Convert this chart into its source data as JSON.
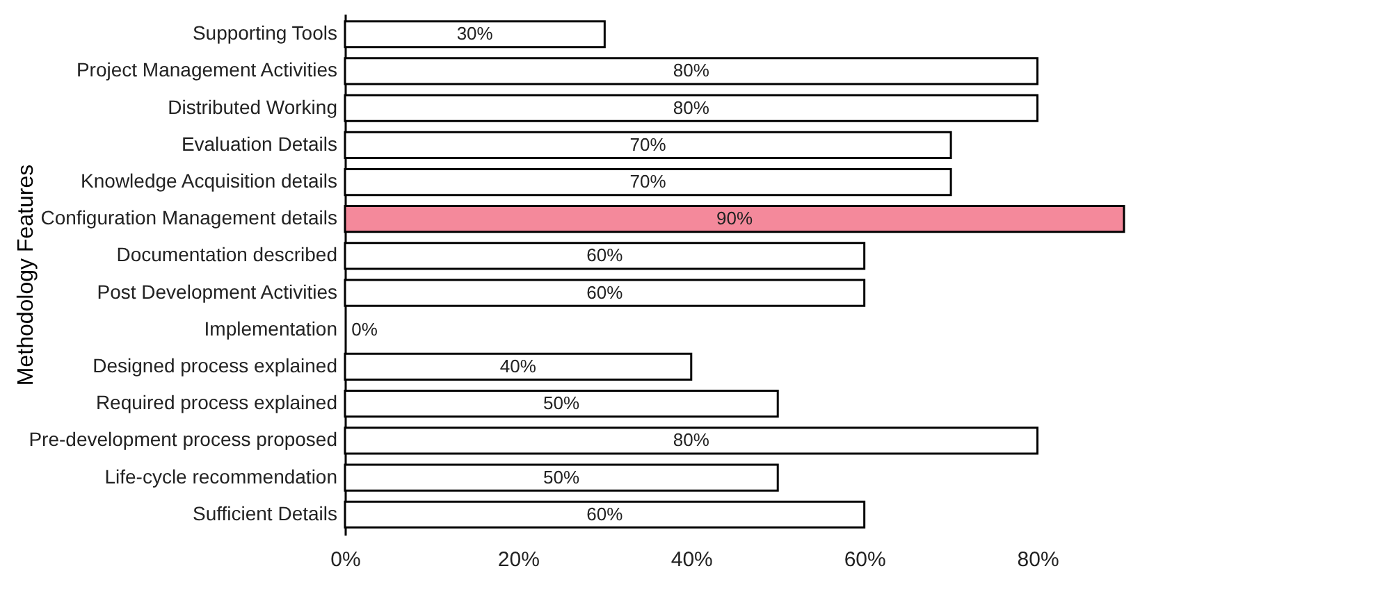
{
  "chart_data": {
    "type": "bar",
    "orientation": "horizontal",
    "ylabel": "Methodology Features",
    "categories": [
      "Supporting Tools",
      "Project Management Activities",
      "Distributed Working",
      "Evaluation Details",
      "Knowledge Acquisition details",
      "Configuration Management details",
      "Documentation described",
      "Post Development Activities",
      "Implementation",
      "Designed process explained",
      "Required process explained",
      "Pre-development process proposed",
      "Life-cycle recommendation",
      "Sufficient Details"
    ],
    "values": [
      30,
      80,
      80,
      70,
      70,
      90,
      60,
      60,
      0,
      40,
      50,
      80,
      50,
      60
    ],
    "colors": [
      "#ffffff",
      "#ffffff",
      "#ffffff",
      "#ffffff",
      "#ffffff",
      "#f4899b",
      "#ffffff",
      "#ffffff",
      "#ffffff",
      "#ffffff",
      "#ffffff",
      "#ffffff",
      "#ffffff",
      "#ffffff"
    ],
    "value_labels": [
      "30%",
      "80%",
      "80%",
      "70%",
      "70%",
      "90%",
      "60%",
      "60%",
      "0%",
      "40%",
      "50%",
      "80%",
      "50%",
      "60%"
    ],
    "xlim": [
      0,
      90
    ],
    "xticks": [
      {
        "value": 0,
        "label": "0%"
      },
      {
        "value": 20,
        "label": "20%"
      },
      {
        "value": 40,
        "label": "40%"
      },
      {
        "value": 60,
        "label": "60%"
      },
      {
        "value": 80,
        "label": "80%"
      }
    ],
    "grid": false
  }
}
